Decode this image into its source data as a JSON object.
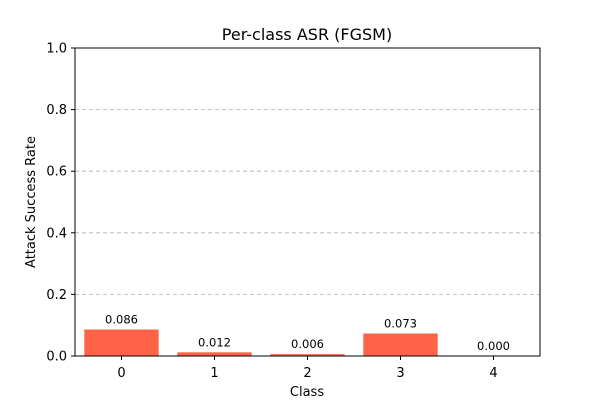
{
  "chart_data": {
    "type": "bar",
    "title": "Per-class ASR (FGSM)",
    "xlabel": "Class",
    "ylabel": "Attack Success Rate",
    "categories": [
      "0",
      "1",
      "2",
      "3",
      "4"
    ],
    "values": [
      0.086,
      0.012,
      0.006,
      0.073,
      0.0
    ],
    "value_labels": [
      "0.086",
      "0.012",
      "0.006",
      "0.073",
      "0.000"
    ],
    "ylim": [
      0,
      1.0
    ],
    "yticks": [
      0.0,
      0.2,
      0.4,
      0.6,
      0.8,
      1.0
    ],
    "ytick_labels": [
      "0.0",
      "0.2",
      "0.4",
      "0.6",
      "0.8",
      "1.0"
    ],
    "grid": "y-dashed",
    "bar_color": "#ff6347"
  }
}
